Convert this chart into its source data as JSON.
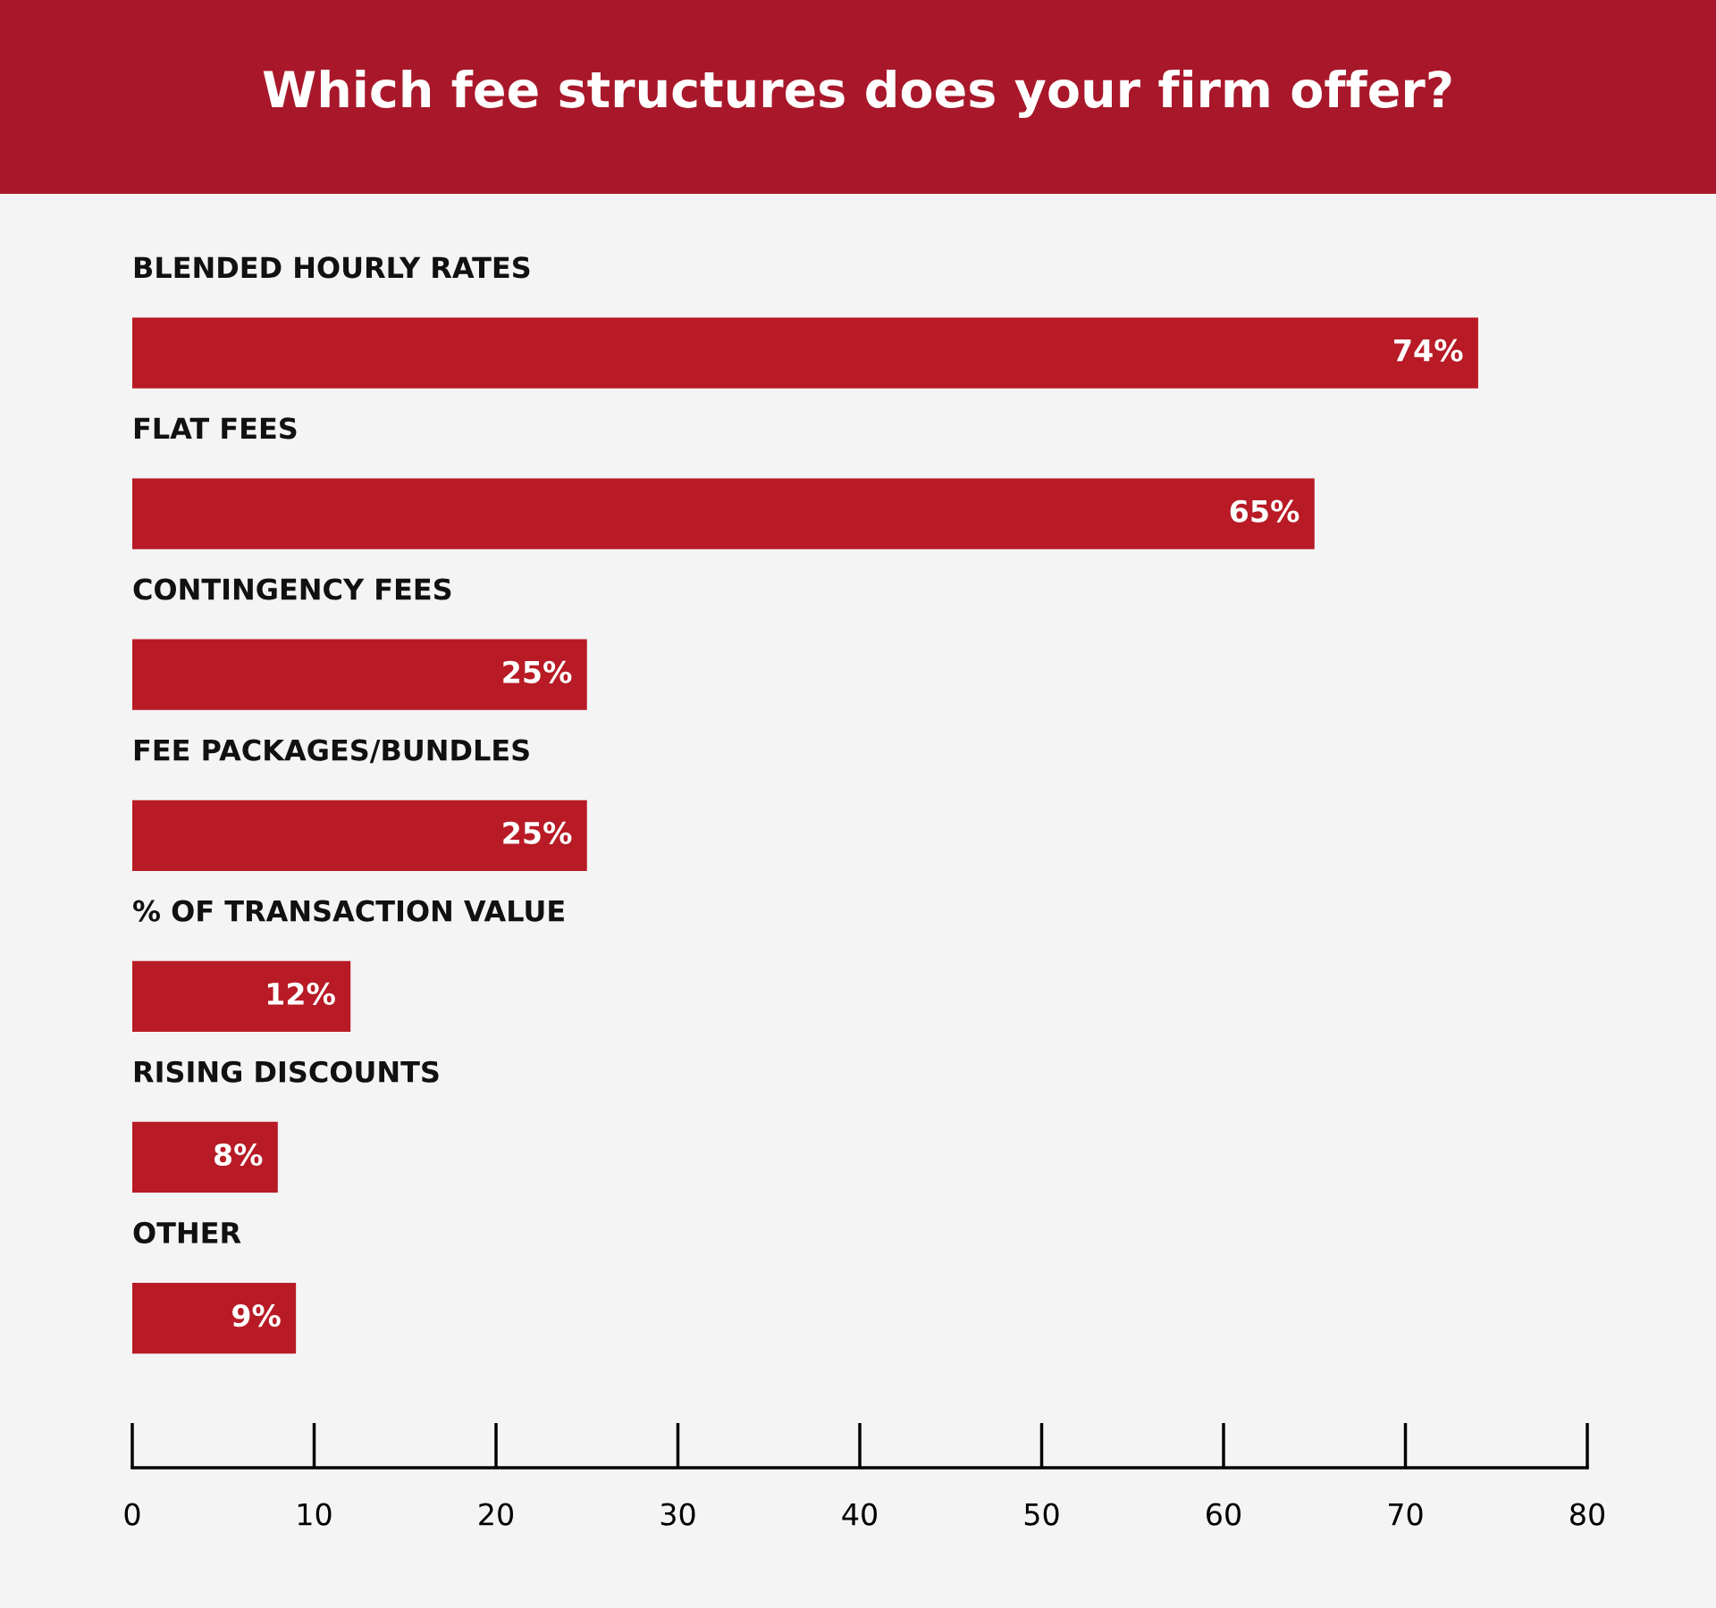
{
  "chart_data": {
    "type": "bar",
    "orientation": "horizontal",
    "title": "Which fee structures does your firm offer?",
    "categories": [
      "BLENDED HOURLY RATES",
      "FLAT FEES",
      "CONTINGENCY FEES",
      "FEE PACKAGES/BUNDLES",
      "% OF TRANSACTION VALUE",
      "RISING DISCOUNTS",
      "OTHER"
    ],
    "values": [
      74,
      65,
      25,
      25,
      12,
      8,
      9
    ],
    "value_labels": [
      "74%",
      "65%",
      "25%",
      "25%",
      "12%",
      "8%",
      "9%"
    ],
    "color": "#b81b26",
    "xlim": [
      0,
      80
    ],
    "xticks": [
      0,
      10,
      20,
      30,
      40,
      50,
      60,
      70,
      80
    ],
    "grid": false
  }
}
